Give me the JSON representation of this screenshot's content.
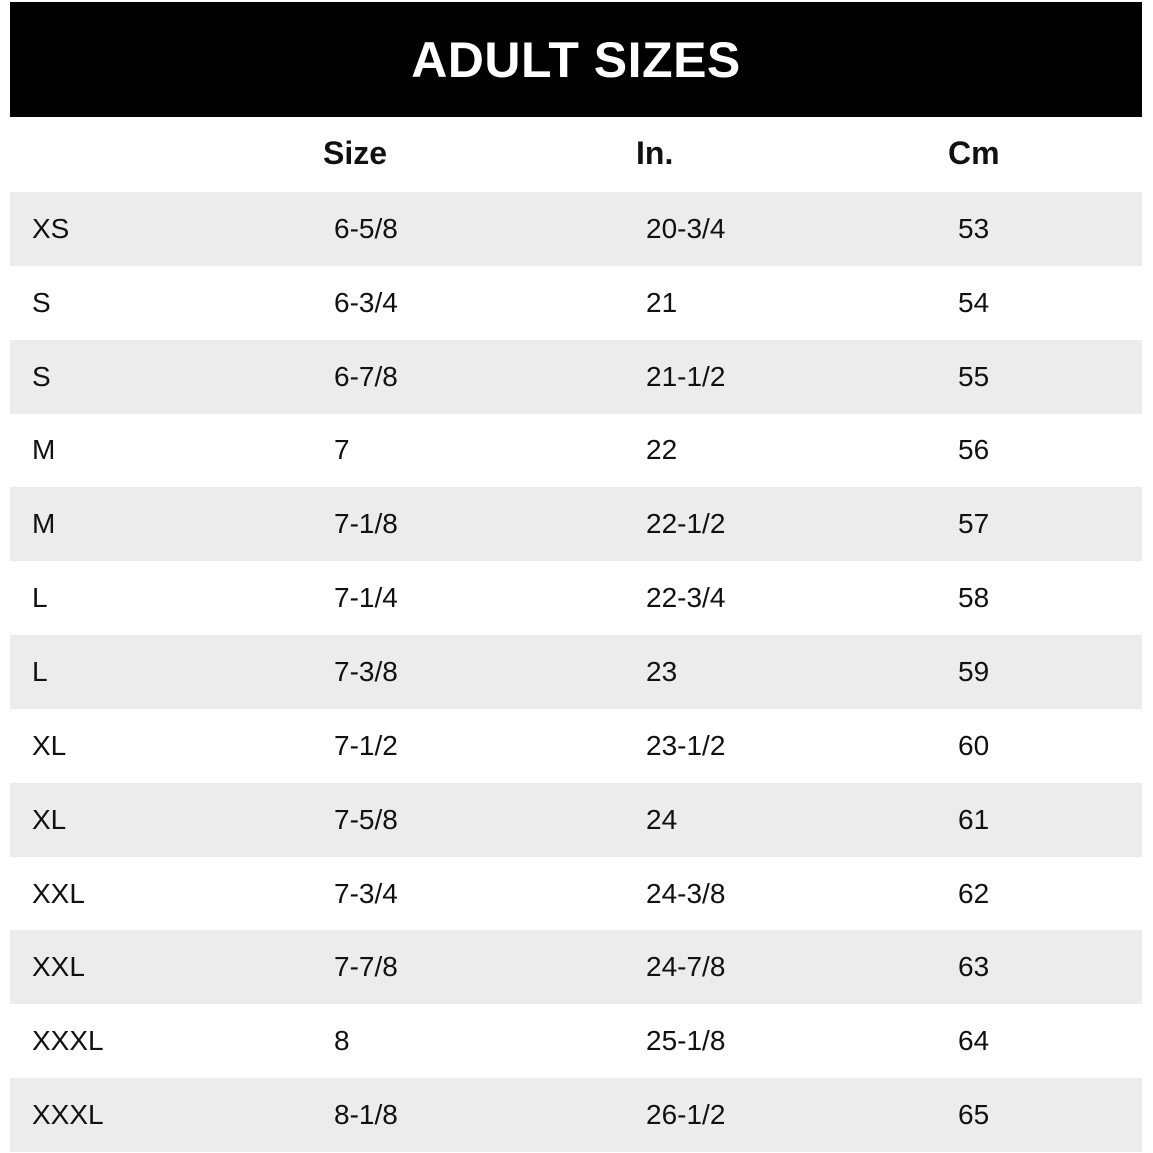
{
  "title": "ADULT SIZES",
  "columns": [
    "",
    "Size",
    "In.",
    "Cm"
  ],
  "rows": [
    [
      "XS",
      "6-5/8",
      "20-3/4",
      "53"
    ],
    [
      "S",
      "6-3/4",
      "21",
      "54"
    ],
    [
      "S",
      "6-7/8",
      "21-1/2",
      "55"
    ],
    [
      "M",
      "7",
      "22",
      "56"
    ],
    [
      "M",
      "7-1/8",
      "22-1/2",
      "57"
    ],
    [
      "L",
      "7-1/4",
      "22-3/4",
      "58"
    ],
    [
      "L",
      "7-3/8",
      "23",
      "59"
    ],
    [
      "XL",
      "7-1/2",
      "23-1/2",
      "60"
    ],
    [
      "XL",
      "7-5/8",
      "24",
      "61"
    ],
    [
      "XXL",
      "7-3/4",
      "24-3/8",
      "62"
    ],
    [
      "XXL",
      "7-7/8",
      "24-7/8",
      "63"
    ],
    [
      "XXXL",
      "8",
      "25-1/8",
      "64"
    ],
    [
      "XXXL",
      "8-1/8",
      "26-1/2",
      "65"
    ]
  ],
  "colors": {
    "banner": "#000000",
    "stripe": "#ececec"
  }
}
